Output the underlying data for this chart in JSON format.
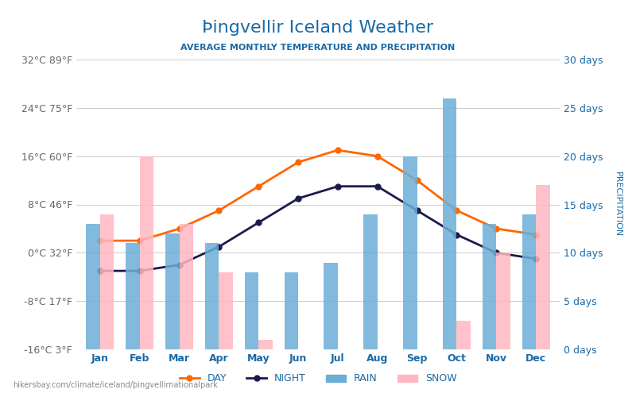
{
  "title": "Þingvellir Iceland Weather",
  "subtitle": "AVERAGE MONTHLY TEMPERATURE AND PRECIPITATION",
  "months": [
    "Jan",
    "Feb",
    "Mar",
    "Apr",
    "May",
    "Jun",
    "Jul",
    "Aug",
    "Sep",
    "Oct",
    "Nov",
    "Dec"
  ],
  "day_temp": [
    2,
    2,
    4,
    7,
    11,
    15,
    17,
    16,
    12,
    7,
    4,
    3
  ],
  "night_temp": [
    -3,
    -3,
    -2,
    1,
    5,
    9,
    11,
    11,
    7,
    3,
    0,
    -1
  ],
  "rain_days": [
    13,
    11,
    12,
    11,
    8,
    8,
    9,
    14,
    20,
    26,
    13,
    14
  ],
  "snow_days": [
    14,
    20,
    13,
    8,
    1,
    0,
    0,
    0,
    0,
    3,
    10,
    17
  ],
  "temp_ylim": [
    -16,
    32
  ],
  "precip_ylim": [
    0,
    30
  ],
  "temp_ticks": [
    -16,
    -8,
    0,
    8,
    16,
    24,
    32
  ],
  "temp_tick_labels_c": [
    "-16°C",
    "-8°C",
    "0°C",
    "8°C",
    "16°C",
    "24°C",
    "32°C"
  ],
  "temp_tick_labels_f": [
    "3°F",
    "17°F",
    "32°F",
    "46°F",
    "60°F",
    "75°F",
    "89°F"
  ],
  "precip_ticks": [
    0,
    5,
    10,
    15,
    20,
    25,
    30
  ],
  "precip_tick_labels": [
    "0 days",
    "5 days",
    "10 days",
    "15 days",
    "20 days",
    "25 days",
    "30 days"
  ],
  "day_color": "#FF6600",
  "night_color": "#1a1a4e",
  "rain_color": "#6baed6",
  "snow_color": "#ffb6c1",
  "title_color": "#1a6aa5",
  "subtitle_color": "#1a6aa5",
  "left_tick_color_negative": "#4444cc",
  "left_tick_color_zero": "#22aa22",
  "left_tick_color_positive_low": "#cc4444",
  "right_tick_color": "#1a6aa5",
  "footer": "hikersbay.com/climate/iceland/þingvellirnationalpark",
  "background_color": "#ffffff",
  "grid_color": "#cccccc"
}
